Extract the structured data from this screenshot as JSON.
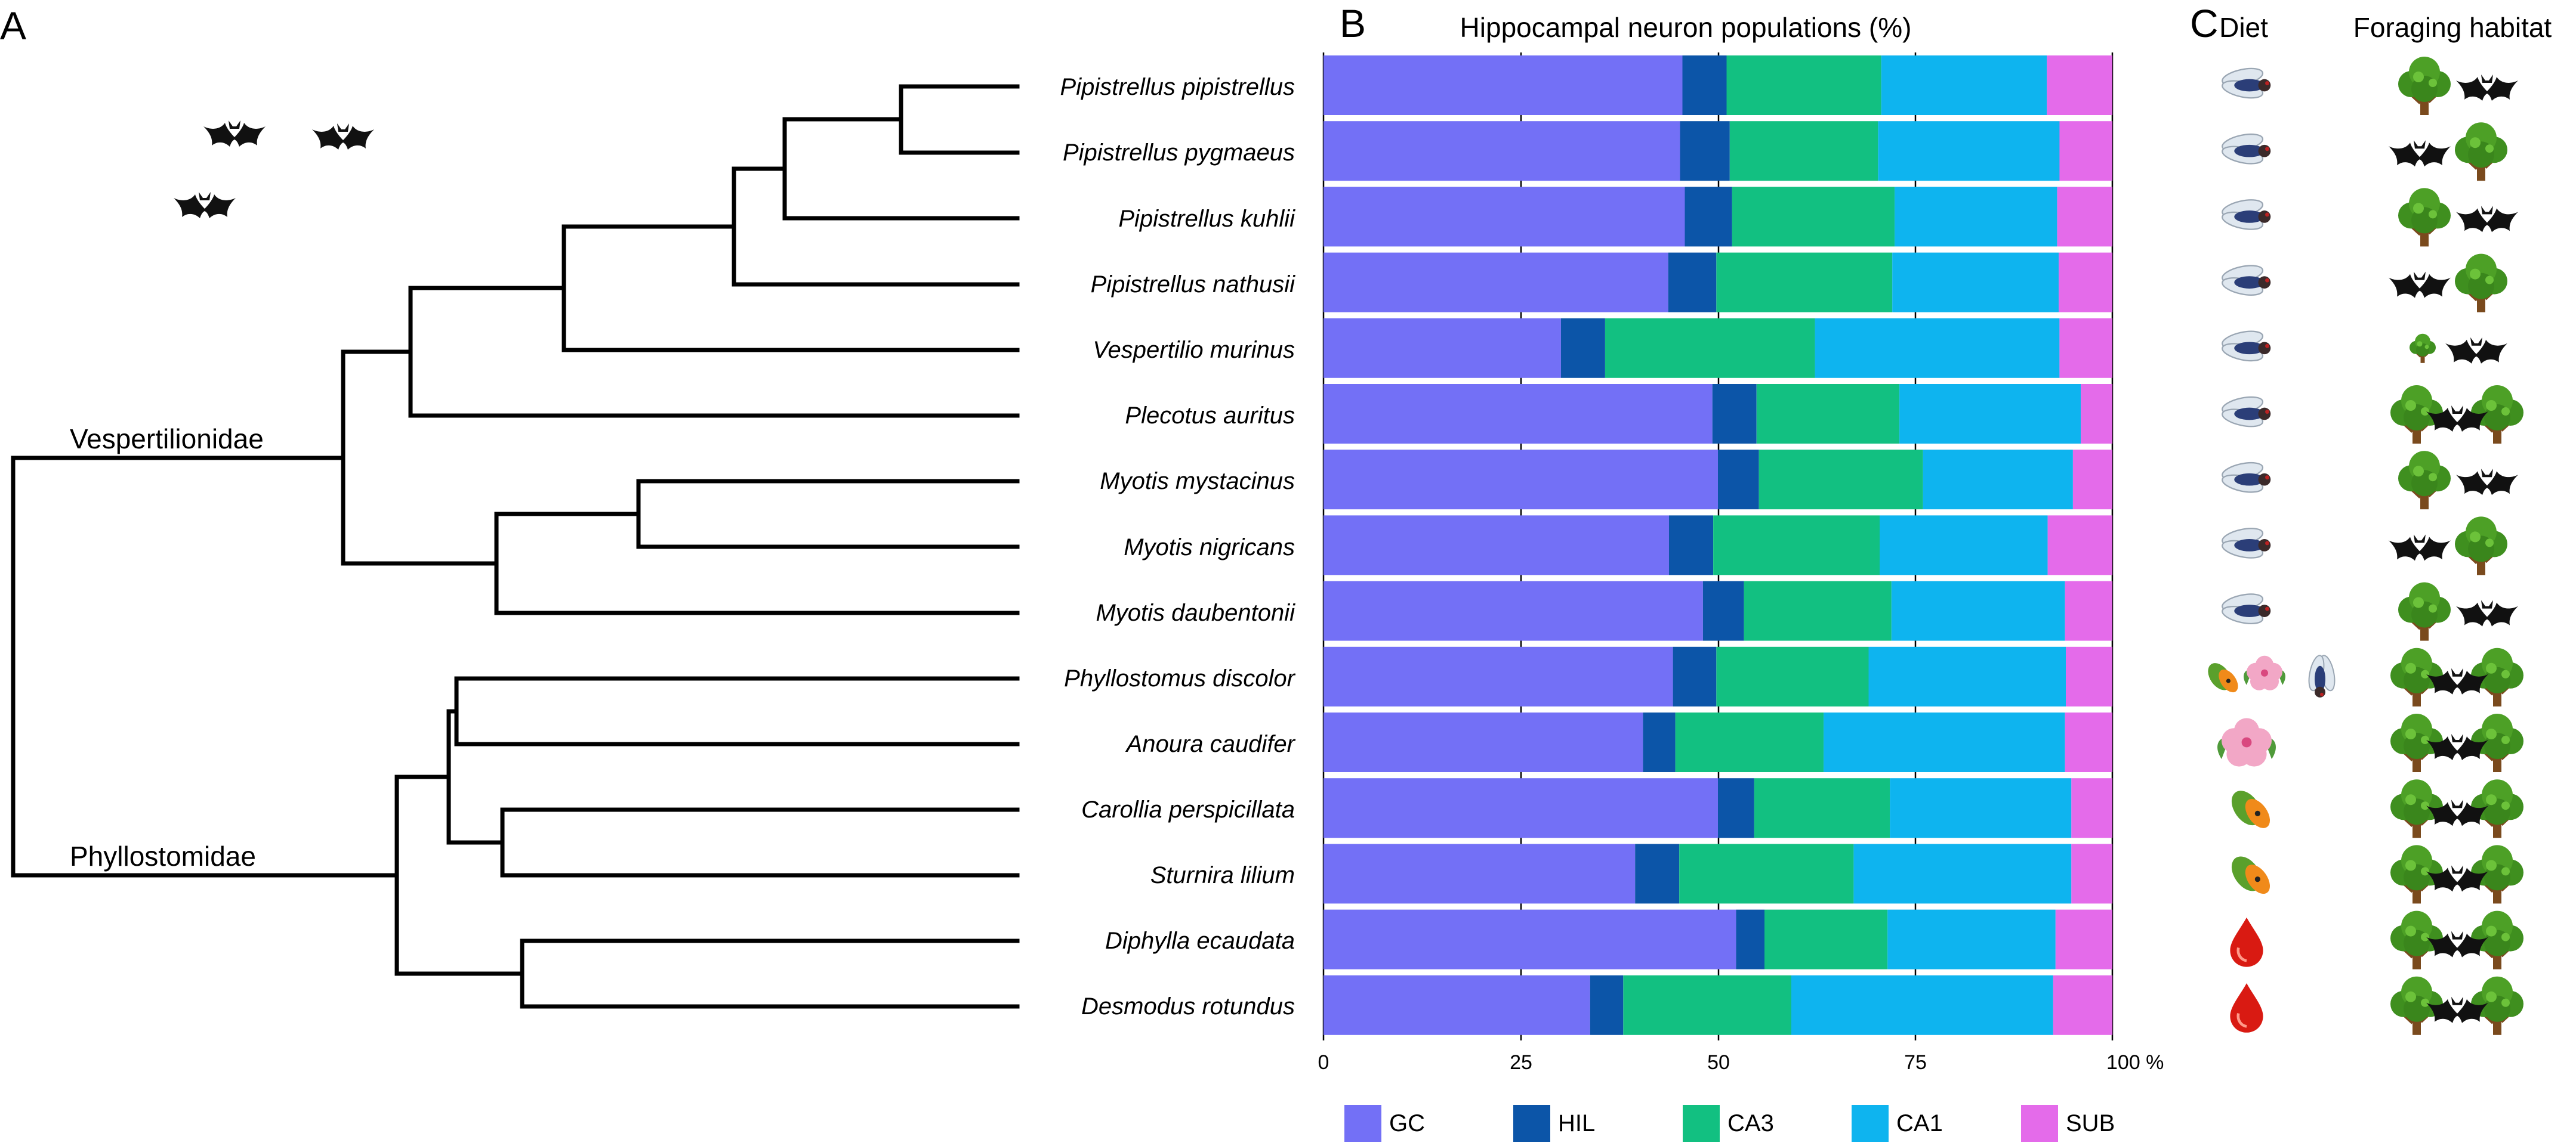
{
  "panels": {
    "a": "A",
    "b": "B",
    "c": "C"
  },
  "families": [
    "Vespertilionidae",
    "Phyllostomidae"
  ],
  "columns": {
    "diet": "Diet",
    "habitat": "Foraging habitat"
  },
  "colors": {
    "GC": "#7370f6",
    "HIL": "#0c55a8",
    "CA3": "#12c081",
    "CA1": "#0eb4ef",
    "SUB": "#e46bea"
  },
  "icon_legend": {
    "fly": "fly-icon",
    "fruit": "papaya-fruit-icon",
    "flower": "hibiscus-flower-icon",
    "blood": "blood-drop-icon",
    "tree": "tree-icon",
    "bat": "bat-icon"
  },
  "chart_data": {
    "type": "bar",
    "orientation": "horizontal",
    "stacked": true,
    "title": "Hippocampal neuron populations (%)",
    "xlim": [
      0,
      100
    ],
    "xticks": [
      "0",
      "25",
      "50",
      "75",
      "100 %"
    ],
    "categories": [
      "Pipistrellus pipistrellus",
      "Pipistrellus pygmaeus",
      "Pipistrellus kuhlii",
      "Pipistrellus nathusii",
      "Vespertilio murinus",
      "Plecotus auritus",
      "Myotis mystacinus",
      "Myotis nigricans",
      "Myotis daubentonii",
      "Phyllostomus discolor",
      "Anoura caudifer",
      "Carollia perspicillata",
      "Sturnira lilium",
      "Diphylla ecaudata",
      "Desmodus rotundus"
    ],
    "series": [
      {
        "name": "GC",
        "values": [
          45.5,
          45.2,
          45.8,
          43.7,
          30.1,
          49.3,
          50.0,
          43.8,
          48.1,
          44.3,
          40.5,
          50.0,
          39.5,
          52.3,
          33.8
        ]
      },
      {
        "name": "HIL",
        "values": [
          5.6,
          6.3,
          6.0,
          6.1,
          5.6,
          5.6,
          5.2,
          5.6,
          5.2,
          5.5,
          4.1,
          4.6,
          5.6,
          3.6,
          4.2
        ]
      },
      {
        "name": "CA3",
        "values": [
          19.6,
          18.8,
          20.6,
          22.3,
          26.6,
          18.1,
          20.8,
          21.1,
          18.7,
          19.3,
          18.8,
          17.2,
          22.1,
          15.6,
          21.3
        ]
      },
      {
        "name": "CA1",
        "values": [
          21.0,
          23.0,
          20.6,
          21.1,
          31.0,
          23.0,
          19.0,
          21.3,
          22.0,
          25.0,
          30.6,
          23.0,
          27.6,
          21.3,
          33.2
        ]
      },
      {
        "name": "SUB",
        "values": [
          8.3,
          6.7,
          7.0,
          6.8,
          6.7,
          4.0,
          5.0,
          8.2,
          6.0,
          5.9,
          6.0,
          5.2,
          5.2,
          7.2,
          7.5
        ]
      }
    ],
    "legend": [
      "GC",
      "HIL",
      "CA3",
      "CA1",
      "SUB"
    ],
    "legend_position": "bottom"
  },
  "diet": [
    [
      "fly"
    ],
    [
      "fly"
    ],
    [
      "fly"
    ],
    [
      "fly"
    ],
    [
      "fly"
    ],
    [
      "fly"
    ],
    [
      "fly"
    ],
    [
      "fly"
    ],
    [
      "fly"
    ],
    [
      "fruit",
      "flower",
      "fly"
    ],
    [
      "flower"
    ],
    [
      "fruit"
    ],
    [
      "fruit"
    ],
    [
      "blood"
    ],
    [
      "blood"
    ]
  ],
  "habitat": [
    "tree-bat",
    "bat-tree",
    "tree-bat",
    "bat-tree",
    "smalltree-bat",
    "tree-bat-tree",
    "tree-bat",
    "bat-tree",
    "tree-bat",
    "tree-bat-tree",
    "tree-bat-tree",
    "tree-bat-tree",
    "tree-bat-tree",
    "tree-bat-tree",
    "tree-bat-tree"
  ]
}
